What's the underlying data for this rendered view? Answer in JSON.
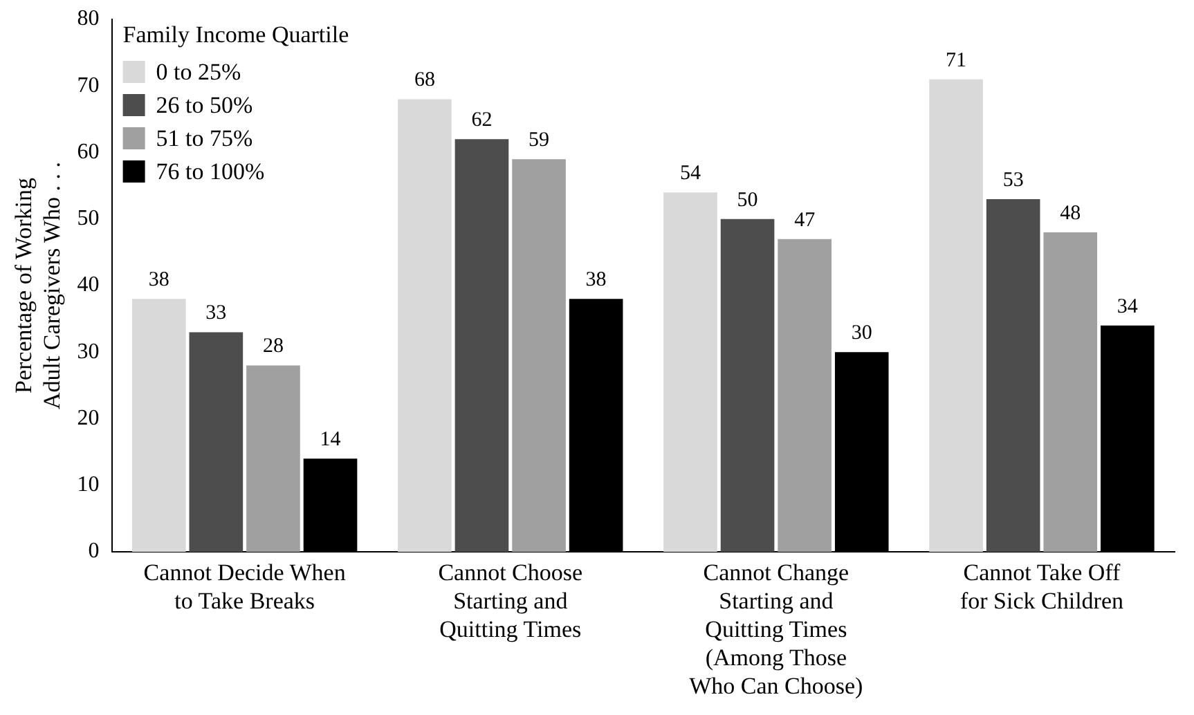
{
  "chart_data": {
    "type": "bar",
    "ylabel": "Percentage of Working\nAdult Caregivers Who . . .",
    "legend_title": "Family Income Quartile",
    "categories": [
      "Cannot Decide When\nto Take Breaks",
      "Cannot Choose\nStarting and\nQuitting Times",
      "Cannot Change\nStarting and\nQuitting Times\n(Among Those\nWho Can Choose)",
      "Cannot Take Off\nfor Sick Children"
    ],
    "series": [
      {
        "name": "0 to 25%",
        "color": "#d9d9d9",
        "values": [
          38,
          68,
          54,
          71
        ]
      },
      {
        "name": "26 to 50%",
        "color": "#4d4d4d",
        "values": [
          33,
          62,
          50,
          53
        ]
      },
      {
        "name": "51 to 75%",
        "color": "#a0a0a0",
        "values": [
          28,
          59,
          47,
          48
        ]
      },
      {
        "name": "76 to 100%",
        "color": "#000000",
        "values": [
          14,
          38,
          30,
          34
        ]
      }
    ],
    "ylim": [
      0,
      80
    ],
    "yticks": [
      0,
      10,
      20,
      30,
      40,
      50,
      60,
      70,
      80
    ],
    "grid": false,
    "legend": "top left",
    "data_labels": true
  }
}
